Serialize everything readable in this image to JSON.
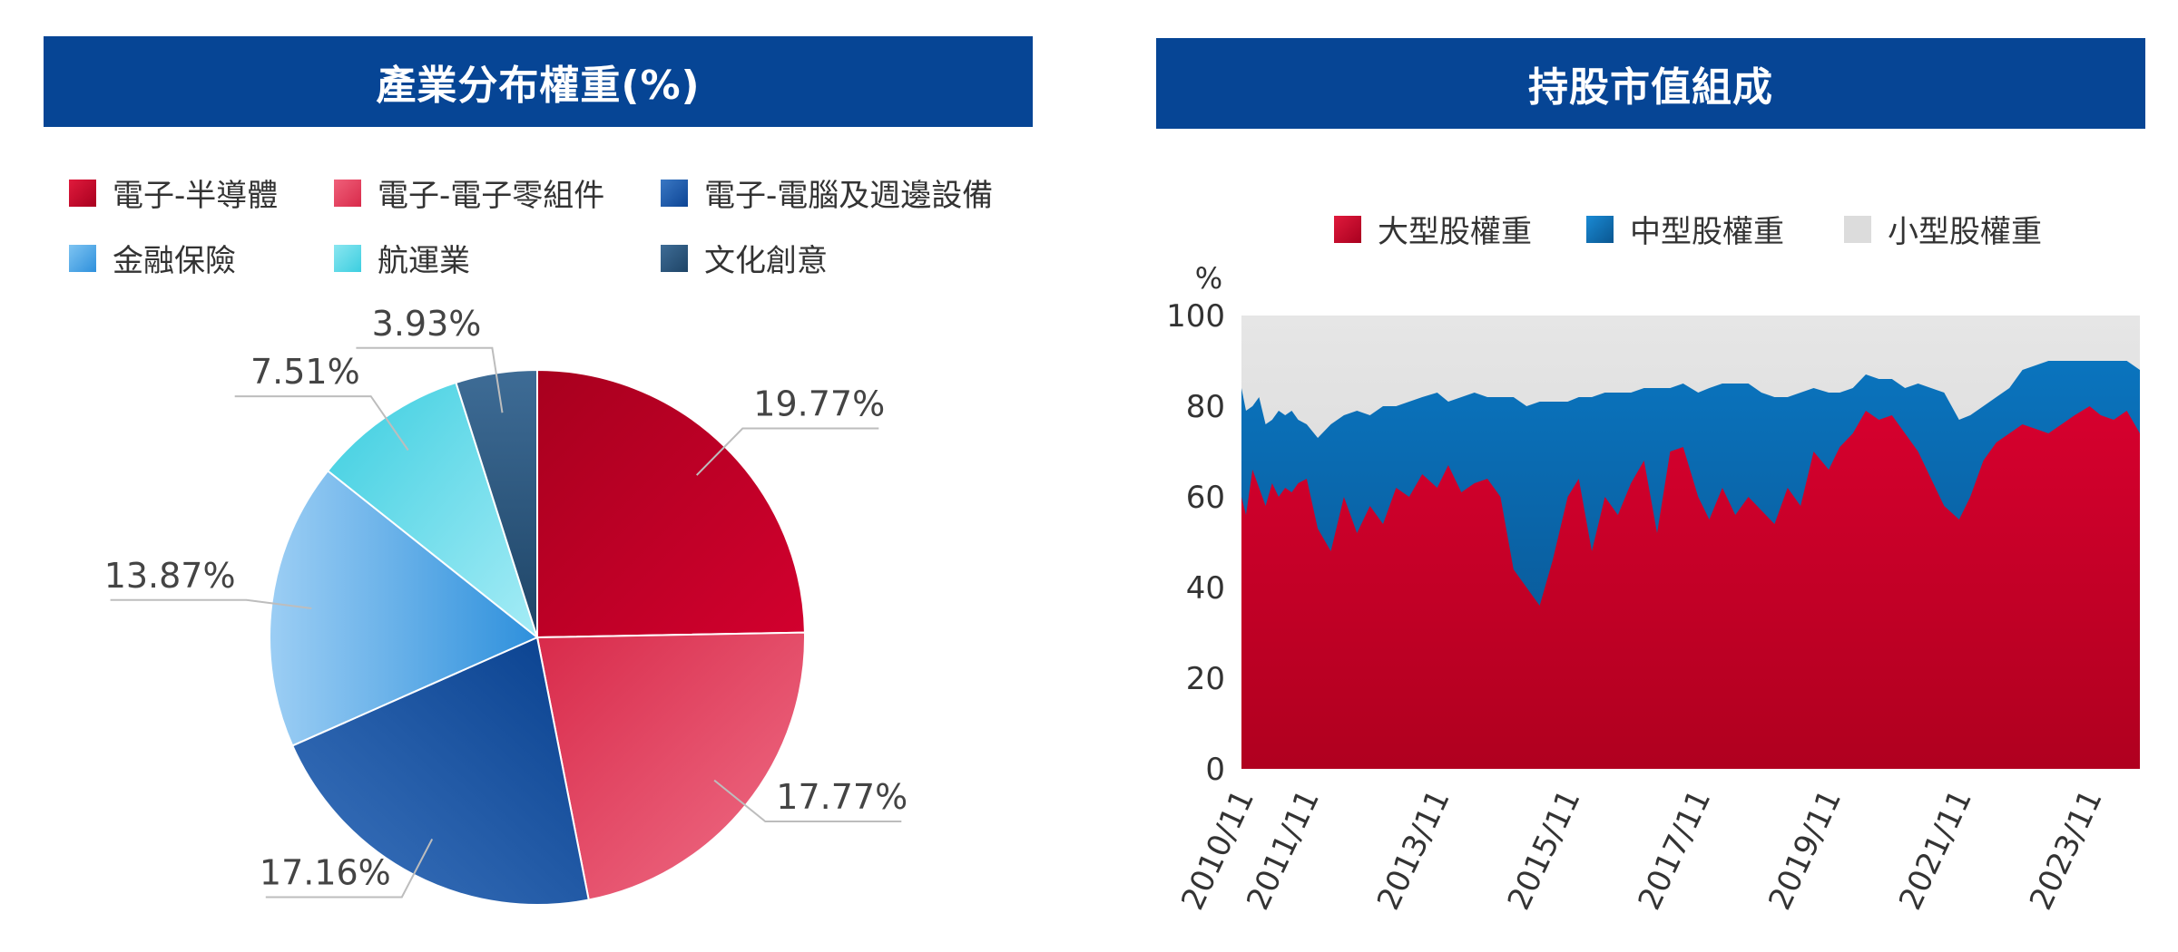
{
  "left_panel": {
    "title": "產業分布權重(%)",
    "legend": [
      {
        "label": "電子-半導體",
        "color": "#C8002B"
      },
      {
        "label": "電子-電子零組件",
        "color": "#E8405E"
      },
      {
        "label": "電子-電腦及週邊設備",
        "color": "#1B56A6"
      },
      {
        "label": "金融保險",
        "color": "#4DA8E8"
      },
      {
        "label": "航運業",
        "color": "#5CD8E6"
      },
      {
        "label": "文化創意",
        "color": "#2D5A84"
      }
    ]
  },
  "right_panel": {
    "title": "持股市值組成",
    "legend": [
      {
        "label": "大型股權重",
        "color": "#C8002B"
      },
      {
        "label": "中型股權重",
        "color": "#0A6FB8"
      },
      {
        "label": "小型股權重",
        "color": "#DCDCDC"
      }
    ]
  },
  "chart_data": [
    {
      "type": "pie",
      "title": "產業分布權重(%)",
      "slices": [
        {
          "label": "電子-半導體",
          "value": 19.77,
          "display": "19.77%",
          "color": "#C8002B"
        },
        {
          "label": "電子-電子零組件",
          "value": 17.77,
          "display": "17.77%",
          "color": "#E8405E"
        },
        {
          "label": "電子-電腦及週邊設備",
          "value": 17.16,
          "display": "17.16%",
          "color": "#1B56A6"
        },
        {
          "label": "金融保險",
          "value": 13.87,
          "display": "13.87%",
          "color": "#4DA8E8"
        },
        {
          "label": "航運業",
          "value": 7.51,
          "display": "7.51%",
          "color": "#5CD8E6"
        },
        {
          "label": "文化創意",
          "value": 3.93,
          "display": "3.93%",
          "color": "#2D5A84"
        }
      ]
    },
    {
      "type": "area",
      "stacked": true,
      "title": "持股市值組成",
      "ylabel": "%",
      "ylim": [
        0,
        100
      ],
      "yticks": [
        0,
        20,
        40,
        60,
        80,
        100
      ],
      "xlim": [
        2010.83,
        2024.6
      ],
      "xticks": [
        {
          "label": "2010/11",
          "x": 2010.83
        },
        {
          "label": "2011/11",
          "x": 2011.83
        },
        {
          "label": "2013/11",
          "x": 2013.83
        },
        {
          "label": "2015/11",
          "x": 2015.83
        },
        {
          "label": "2017/11",
          "x": 2017.83
        },
        {
          "label": "2019/11",
          "x": 2019.83
        },
        {
          "label": "2021/11",
          "x": 2021.83
        },
        {
          "label": "2023/11",
          "x": 2023.83
        }
      ],
      "x": [
        2010.83,
        2010.9,
        2011.0,
        2011.1,
        2011.2,
        2011.3,
        2011.4,
        2011.5,
        2011.6,
        2011.7,
        2011.83,
        2012.0,
        2012.2,
        2012.4,
        2012.6,
        2012.8,
        2013.0,
        2013.2,
        2013.4,
        2013.6,
        2013.83,
        2014.0,
        2014.2,
        2014.4,
        2014.6,
        2014.8,
        2015.0,
        2015.2,
        2015.4,
        2015.6,
        2015.83,
        2016.0,
        2016.2,
        2016.4,
        2016.6,
        2016.8,
        2017.0,
        2017.2,
        2017.4,
        2017.6,
        2017.83,
        2018.0,
        2018.2,
        2018.4,
        2018.6,
        2018.8,
        2019.0,
        2019.2,
        2019.4,
        2019.6,
        2019.83,
        2020.0,
        2020.2,
        2020.4,
        2020.6,
        2020.8,
        2021.0,
        2021.2,
        2021.4,
        2021.6,
        2021.83,
        2022.0,
        2022.2,
        2022.4,
        2022.6,
        2022.8,
        2023.0,
        2023.2,
        2023.4,
        2023.6,
        2023.83,
        2024.0,
        2024.2,
        2024.4,
        2024.6
      ],
      "series": [
        {
          "name": "大型股權重",
          "values": [
            60,
            56,
            66,
            62,
            58,
            63,
            60,
            62,
            61,
            63,
            64,
            53,
            48,
            60,
            52,
            58,
            54,
            62,
            60,
            65,
            62,
            67,
            61,
            63,
            64,
            60,
            44,
            40,
            36,
            46,
            60,
            64,
            48,
            60,
            56,
            63,
            68,
            52,
            70,
            71,
            60,
            55,
            62,
            56,
            60,
            57,
            54,
            62,
            58,
            70,
            66,
            71,
            74,
            79,
            77,
            78,
            74,
            70,
            64,
            58,
            55,
            60,
            68,
            72,
            74,
            76,
            75,
            74,
            76,
            78,
            80,
            78,
            77,
            79,
            74
          ]
        },
        {
          "name": "中型股權重",
          "values": [
            24,
            23,
            14,
            20,
            18,
            14,
            19,
            16,
            18,
            14,
            12,
            20,
            28,
            18,
            27,
            20,
            26,
            18,
            21,
            17,
            21,
            14,
            21,
            20,
            18,
            22,
            38,
            40,
            45,
            35,
            21,
            18,
            34,
            23,
            27,
            20,
            16,
            32,
            14,
            14,
            23,
            29,
            23,
            29,
            25,
            26,
            28,
            20,
            25,
            14,
            17,
            12,
            10,
            8,
            9,
            8,
            10,
            15,
            20,
            25,
            22,
            18,
            12,
            10,
            10,
            12,
            14,
            16,
            14,
            12,
            10,
            12,
            13,
            11,
            14
          ]
        },
        {
          "name": "小型股權重",
          "values": [
            16,
            21,
            20,
            18,
            24,
            23,
            21,
            22,
            21,
            23,
            24,
            27,
            24,
            22,
            21,
            22,
            20,
            20,
            19,
            18,
            17,
            19,
            18,
            17,
            18,
            18,
            18,
            20,
            19,
            19,
            19,
            18,
            18,
            17,
            17,
            17,
            16,
            16,
            16,
            15,
            17,
            16,
            15,
            15,
            15,
            17,
            18,
            18,
            17,
            16,
            17,
            17,
            16,
            13,
            14,
            14,
            16,
            15,
            16,
            17,
            23,
            22,
            20,
            18,
            16,
            12,
            11,
            10,
            10,
            10,
            10,
            10,
            10,
            10,
            12
          ]
        }
      ]
    }
  ]
}
